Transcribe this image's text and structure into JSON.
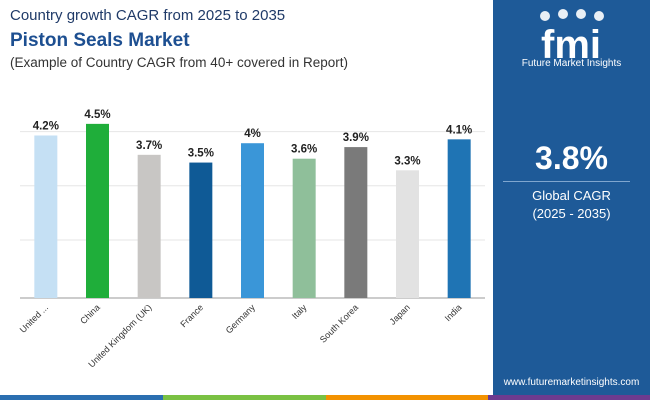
{
  "header": {
    "subtitle": "Country growth CAGR from 2025 to 2035",
    "title": "Piston Seals Market",
    "description": "(Example of Country CAGR from 40+ covered in Report)"
  },
  "chart_data": {
    "type": "bar",
    "categories": [
      "United ...",
      "China",
      "United Kingdom (UK)",
      "France",
      "Germany",
      "Italy",
      "South Korea",
      "Japan",
      "India"
    ],
    "values": [
      4.2,
      4.5,
      3.7,
      3.5,
      4,
      3.6,
      3.9,
      3.3,
      4.1
    ],
    "value_labels": [
      "4.2%",
      "4.5%",
      "3.7%",
      "3.5%",
      "4%",
      "3.6%",
      "3.9%",
      "3.3%",
      "4.1%"
    ],
    "colors": [
      "#c5e0f4",
      "#1fae3a",
      "#c8c6c4",
      "#0f5a96",
      "#3a96d8",
      "#8fbf9a",
      "#7a7a7a",
      "#e2e2e2",
      "#1f74b4"
    ],
    "ylim": [
      0,
      4.6
    ],
    "grid": true,
    "legend": "none"
  },
  "sidebar": {
    "logo_text": "fmi",
    "logo_caption": "Future Market Insights",
    "big_value": "3.8%",
    "label": "Global CAGR",
    "period": "(2025 - 2035)",
    "url": "www.futuremarketinsights.com",
    "bg_color": "#1e5a98"
  },
  "bottom_strip_colors": [
    "#2b6fb0",
    "#7ac143",
    "#f39200",
    "#6d3b8f"
  ]
}
